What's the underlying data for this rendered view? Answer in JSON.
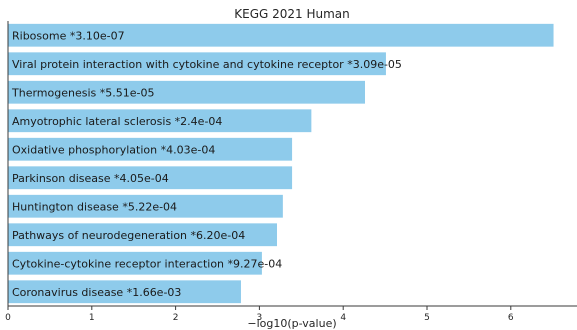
{
  "chart_data": {
    "type": "bar",
    "orientation": "horizontal",
    "title": "KEGG 2021 Human",
    "xlabel": "−log10(p-value)",
    "ylabel": "",
    "xlim": [
      0,
      6.8
    ],
    "xticks": [
      "0",
      "1",
      "2",
      "3",
      "4",
      "5",
      "6"
    ],
    "bar_color": "#8ecbeb",
    "grid": false,
    "legend": "none",
    "bars": [
      {
        "label": "Ribosome  *3.10e-07",
        "value": 6.51
      },
      {
        "label": "Viral protein interaction with cytokine and cytokine receptor  *3.09e-05",
        "value": 4.51
      },
      {
        "label": "Thermogenesis  *5.51e-05",
        "value": 4.26
      },
      {
        "label": "Amyotrophic lateral sclerosis  *2.4e-04",
        "value": 3.62
      },
      {
        "label": "Oxidative phosphorylation  *4.03e-04",
        "value": 3.39
      },
      {
        "label": "Parkinson disease  *4.05e-04",
        "value": 3.39
      },
      {
        "label": "Huntington disease  *5.22e-04",
        "value": 3.28
      },
      {
        "label": "Pathways of neurodegeneration  *6.20e-04",
        "value": 3.21
      },
      {
        "label": "Cytokine-cytokine receptor interaction  *9.27e-04",
        "value": 3.03
      },
      {
        "label": "Coronavirus disease  *1.66e-03",
        "value": 2.78
      }
    ]
  }
}
